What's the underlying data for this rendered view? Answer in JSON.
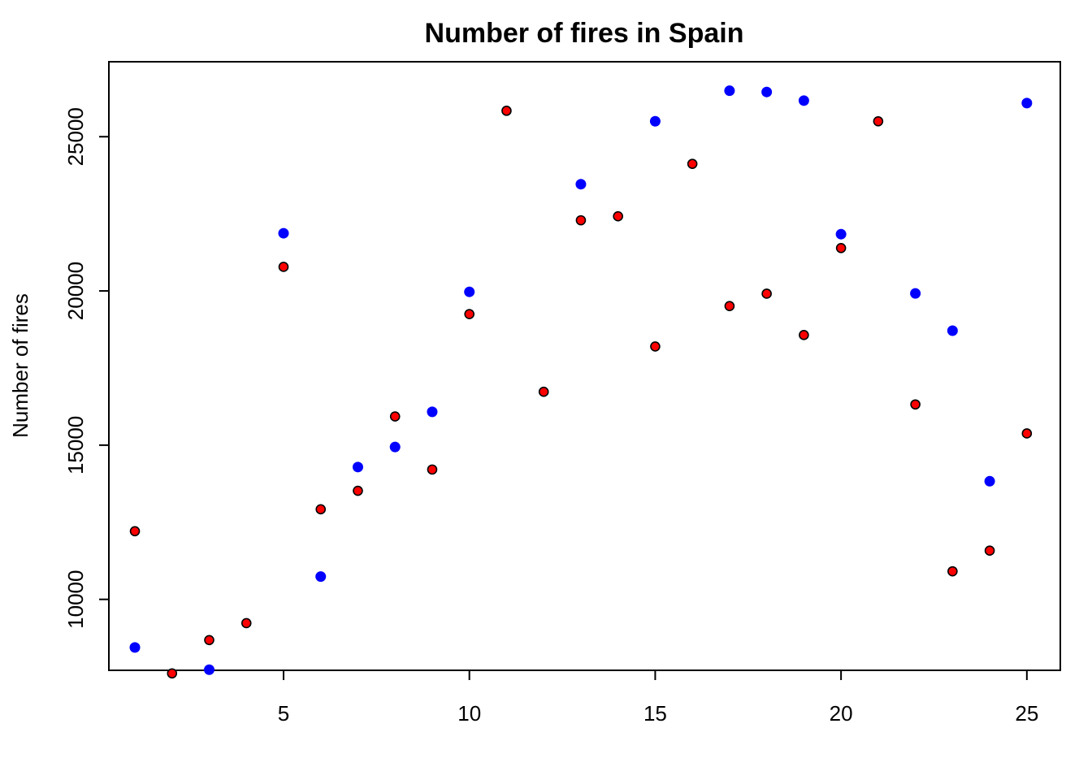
{
  "chart_data": {
    "type": "scatter",
    "title": "Number of fires in Spain",
    "xlabel": "",
    "ylabel": "Number of fires",
    "xlim": [
      0.3,
      25.9
    ],
    "ylim": [
      7700,
      27430
    ],
    "x_ticks": [
      5,
      10,
      15,
      20,
      25
    ],
    "y_ticks": [
      10000,
      15000,
      20000,
      25000
    ],
    "grid": false,
    "legend": "none",
    "series": [
      {
        "color": "#0000FF",
        "marker": "filled-circle",
        "points": [
          {
            "x": 1,
            "y": 8440
          },
          {
            "x": 3,
            "y": 7720
          },
          {
            "x": 5,
            "y": 21870
          },
          {
            "x": 6,
            "y": 10740
          },
          {
            "x": 7,
            "y": 14290
          },
          {
            "x": 8,
            "y": 14940
          },
          {
            "x": 9,
            "y": 16080
          },
          {
            "x": 10,
            "y": 19970
          },
          {
            "x": 13,
            "y": 23460
          },
          {
            "x": 15,
            "y": 25500
          },
          {
            "x": 17,
            "y": 26490
          },
          {
            "x": 18,
            "y": 26450
          },
          {
            "x": 19,
            "y": 26170
          },
          {
            "x": 20,
            "y": 21840
          },
          {
            "x": 22,
            "y": 19920
          },
          {
            "x": 23,
            "y": 18710
          },
          {
            "x": 24,
            "y": 13830
          },
          {
            "x": 25,
            "y": 26090
          }
        ]
      },
      {
        "color": "#FF0000",
        "outline": "#000000",
        "marker": "outlined-circle",
        "points": [
          {
            "x": 1,
            "y": 12210
          },
          {
            "x": 2,
            "y": 7600
          },
          {
            "x": 3,
            "y": 8680
          },
          {
            "x": 4,
            "y": 9230
          },
          {
            "x": 5,
            "y": 20780
          },
          {
            "x": 6,
            "y": 12920
          },
          {
            "x": 7,
            "y": 13520
          },
          {
            "x": 8,
            "y": 15930
          },
          {
            "x": 9,
            "y": 14210
          },
          {
            "x": 10,
            "y": 19250
          },
          {
            "x": 11,
            "y": 25840
          },
          {
            "x": 12,
            "y": 16730
          },
          {
            "x": 13,
            "y": 22290
          },
          {
            "x": 14,
            "y": 22420
          },
          {
            "x": 15,
            "y": 18200
          },
          {
            "x": 16,
            "y": 24120
          },
          {
            "x": 17,
            "y": 19510
          },
          {
            "x": 18,
            "y": 19910
          },
          {
            "x": 19,
            "y": 18570
          },
          {
            "x": 20,
            "y": 21390
          },
          {
            "x": 21,
            "y": 25500
          },
          {
            "x": 22,
            "y": 16320
          },
          {
            "x": 23,
            "y": 10910
          },
          {
            "x": 24,
            "y": 11580
          },
          {
            "x": 25,
            "y": 15380
          }
        ]
      }
    ]
  }
}
